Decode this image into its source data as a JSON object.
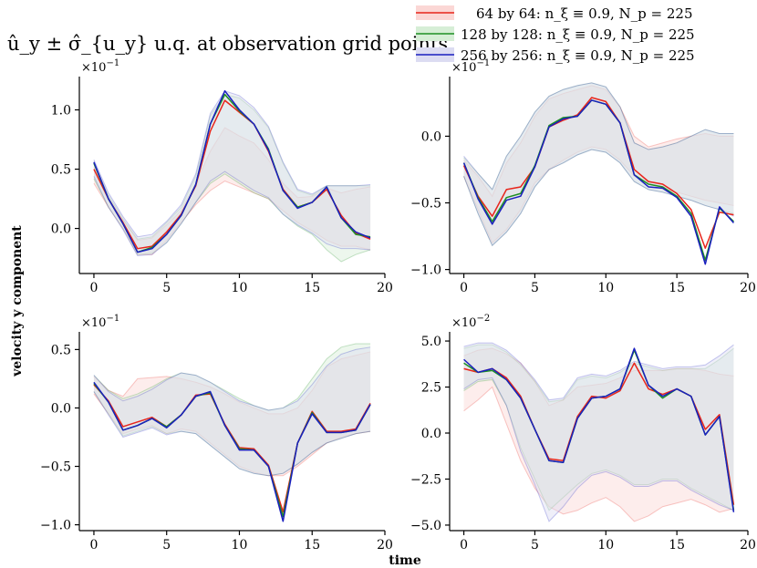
{
  "title": "û_y ± σ̂_{u_y} u.q. at observation grid points",
  "xlabel": "time",
  "ylabel": "velocity y component",
  "legend": [
    {
      "label": "64 by 64: n_ξ ≡ 0.9, N_p = 225",
      "color": "#e8251b",
      "fill": "#fbd7d5"
    },
    {
      "label": "128 by 128: n_ξ ≡ 0.9, N_p = 225",
      "color": "#1e8f24",
      "fill": "#d6eed6"
    },
    {
      "label": "256 by 256: n_ξ ≡ 0.9, N_p = 225",
      "color": "#1a1fbf",
      "fill": "#dcdcf2"
    }
  ],
  "chart_data": [
    {
      "type": "line",
      "panel": "top-left",
      "multiplier": "×10^-1",
      "xlim": [
        -1,
        20
      ],
      "ylim": [
        -0.38,
        1.25
      ],
      "xticks": [
        0,
        5,
        10,
        15,
        20
      ],
      "xtick_labels": [
        "0",
        "5",
        "10",
        "15",
        "20"
      ],
      "yticks": [
        0.0,
        0.5,
        1.0
      ],
      "ytick_labels": [
        "0.0",
        "0.5",
        "1.0"
      ],
      "x": [
        0,
        1,
        2,
        3,
        4,
        5,
        6,
        7,
        8,
        9,
        10,
        11,
        12,
        13,
        14,
        15,
        16,
        17,
        18,
        19
      ],
      "series": [
        {
          "name": "64 by 64",
          "values": [
            0.5,
            0.25,
            0.05,
            -0.17,
            -0.15,
            -0.03,
            0.12,
            0.36,
            0.82,
            1.08,
            0.98,
            0.88,
            0.65,
            0.33,
            0.18,
            0.22,
            0.33,
            0.11,
            -0.04,
            -0.09
          ],
          "upper": [
            0.52,
            0.26,
            0.07,
            -0.1,
            -0.08,
            0.03,
            0.15,
            0.38,
            0.65,
            0.85,
            0.78,
            0.72,
            0.58,
            0.38,
            0.26,
            0.27,
            0.34,
            0.3,
            0.33,
            0.35
          ],
          "lower": [
            0.38,
            0.18,
            0.0,
            -0.22,
            -0.22,
            -0.1,
            0.05,
            0.2,
            0.32,
            0.4,
            0.35,
            0.3,
            0.25,
            0.15,
            0.05,
            -0.02,
            -0.1,
            -0.15,
            -0.15,
            -0.18
          ]
        },
        {
          "name": "128 by 128",
          "values": [
            0.55,
            0.25,
            0.04,
            -0.2,
            -0.16,
            -0.05,
            0.11,
            0.37,
            0.88,
            1.13,
            0.99,
            0.88,
            0.67,
            0.32,
            0.18,
            0.22,
            0.35,
            0.09,
            -0.05,
            -0.07
          ],
          "upper": [
            0.56,
            0.28,
            0.08,
            -0.09,
            -0.07,
            0.05,
            0.18,
            0.44,
            0.95,
            1.13,
            1.1,
            1.0,
            0.85,
            0.55,
            0.32,
            0.28,
            0.36,
            0.36,
            0.36,
            0.36
          ],
          "lower": [
            0.42,
            0.18,
            0.0,
            -0.22,
            -0.21,
            -0.12,
            0.04,
            0.22,
            0.38,
            0.46,
            0.38,
            0.3,
            0.25,
            0.12,
            0.02,
            -0.05,
            -0.18,
            -0.28,
            -0.22,
            -0.18
          ]
        },
        {
          "name": "256 by 256",
          "values": [
            0.56,
            0.25,
            0.04,
            -0.2,
            -0.17,
            -0.05,
            0.11,
            0.37,
            0.88,
            1.16,
            1.0,
            0.88,
            0.66,
            0.32,
            0.17,
            0.22,
            0.35,
            0.09,
            -0.03,
            -0.08
          ],
          "upper": [
            0.58,
            0.3,
            0.1,
            -0.07,
            -0.05,
            0.06,
            0.2,
            0.46,
            0.97,
            1.16,
            1.12,
            1.02,
            0.86,
            0.56,
            0.33,
            0.29,
            0.36,
            0.36,
            0.36,
            0.37
          ],
          "lower": [
            0.44,
            0.18,
            -0.01,
            -0.23,
            -0.22,
            -0.12,
            0.04,
            0.22,
            0.4,
            0.48,
            0.4,
            0.32,
            0.26,
            0.12,
            0.03,
            -0.04,
            -0.13,
            -0.17,
            -0.17,
            -0.18
          ]
        }
      ]
    },
    {
      "type": "line",
      "panel": "top-right",
      "multiplier": "×10^-1",
      "xlim": [
        -1,
        20
      ],
      "ylim": [
        -1.03,
        0.42
      ],
      "xticks": [
        0,
        5,
        10,
        15,
        20
      ],
      "xtick_labels": [
        "0",
        "5",
        "10",
        "15",
        "20"
      ],
      "yticks": [
        -1.0,
        -0.5,
        0.0
      ],
      "ytick_labels": [
        "−1.0",
        "−0.5",
        "0.0"
      ],
      "x": [
        0,
        1,
        2,
        3,
        4,
        5,
        6,
        7,
        8,
        9,
        10,
        11,
        12,
        13,
        14,
        15,
        16,
        17,
        18,
        19
      ],
      "series": [
        {
          "name": "64 by 64",
          "values": [
            -0.22,
            -0.45,
            -0.6,
            -0.4,
            -0.38,
            -0.23,
            0.07,
            0.12,
            0.16,
            0.29,
            0.26,
            0.1,
            -0.25,
            -0.34,
            -0.36,
            -0.43,
            -0.55,
            -0.84,
            -0.57,
            -0.59
          ],
          "upper": [
            -0.18,
            -0.3,
            -0.45,
            -0.2,
            -0.05,
            0.15,
            0.28,
            0.32,
            0.35,
            0.38,
            0.35,
            0.22,
            0.0,
            -0.08,
            -0.05,
            -0.02,
            0.0,
            0.02,
            0.0,
            0.0
          ],
          "lower": [
            -0.3,
            -0.55,
            -0.8,
            -0.7,
            -0.55,
            -0.35,
            -0.25,
            -0.18,
            -0.12,
            -0.08,
            -0.1,
            -0.18,
            -0.3,
            -0.35,
            -0.4,
            -0.42,
            -0.45,
            -0.48,
            -0.5,
            -0.52
          ]
        },
        {
          "name": "128 by 128",
          "values": [
            -0.2,
            -0.46,
            -0.64,
            -0.46,
            -0.43,
            -0.22,
            0.08,
            0.14,
            0.15,
            0.27,
            0.24,
            0.1,
            -0.29,
            -0.36,
            -0.38,
            -0.45,
            -0.58,
            -0.93,
            -0.54,
            -0.64
          ],
          "upper": [
            -0.16,
            -0.28,
            -0.4,
            -0.15,
            0.0,
            0.18,
            0.3,
            0.35,
            0.38,
            0.4,
            0.37,
            0.22,
            -0.05,
            -0.1,
            -0.08,
            -0.05,
            0.0,
            0.05,
            0.02,
            0.02
          ],
          "lower": [
            -0.3,
            -0.58,
            -0.82,
            -0.72,
            -0.58,
            -0.38,
            -0.25,
            -0.2,
            -0.14,
            -0.1,
            -0.12,
            -0.2,
            -0.34,
            -0.4,
            -0.42,
            -0.45,
            -0.48,
            -0.52,
            -0.55,
            -0.58
          ]
        },
        {
          "name": "256 by 256",
          "values": [
            -0.2,
            -0.47,
            -0.66,
            -0.48,
            -0.45,
            -0.23,
            0.07,
            0.13,
            0.15,
            0.27,
            0.24,
            0.1,
            -0.29,
            -0.38,
            -0.39,
            -0.46,
            -0.6,
            -0.96,
            -0.53,
            -0.65
          ],
          "upper": [
            -0.15,
            -0.28,
            -0.4,
            -0.15,
            0.0,
            0.18,
            0.3,
            0.35,
            0.38,
            0.4,
            0.37,
            0.22,
            -0.05,
            -0.1,
            -0.08,
            -0.05,
            0.0,
            0.05,
            0.02,
            0.02
          ],
          "lower": [
            -0.3,
            -0.58,
            -0.82,
            -0.72,
            -0.58,
            -0.38,
            -0.25,
            -0.2,
            -0.14,
            -0.1,
            -0.12,
            -0.2,
            -0.34,
            -0.4,
            -0.42,
            -0.45,
            -0.48,
            -0.52,
            -0.55,
            -0.6
          ]
        }
      ]
    },
    {
      "type": "line",
      "panel": "bottom-left",
      "multiplier": "×10^-1",
      "xlim": [
        -1,
        20
      ],
      "ylim": [
        -1.05,
        0.62
      ],
      "xticks": [
        0,
        5,
        10,
        15,
        20
      ],
      "xtick_labels": [
        "0",
        "5",
        "10",
        "15",
        "20"
      ],
      "yticks": [
        -1.0,
        -0.5,
        0.0,
        0.5
      ],
      "ytick_labels": [
        "−1.0",
        "−0.5",
        "0.0",
        "0.5"
      ],
      "x": [
        0,
        1,
        2,
        3,
        4,
        5,
        6,
        7,
        8,
        9,
        10,
        11,
        12,
        13,
        14,
        15,
        16,
        17,
        18,
        19
      ],
      "series": [
        {
          "name": "64 by 64",
          "values": [
            0.2,
            0.06,
            -0.16,
            -0.12,
            -0.08,
            -0.16,
            -0.06,
            0.11,
            0.12,
            -0.14,
            -0.34,
            -0.35,
            -0.49,
            -0.89,
            -0.3,
            -0.03,
            -0.2,
            -0.2,
            -0.18,
            0.04
          ],
          "upper": [
            0.27,
            0.15,
            0.1,
            0.25,
            0.26,
            0.27,
            0.25,
            0.22,
            0.18,
            0.12,
            0.05,
            0.0,
            -0.05,
            -0.05,
            0.0,
            0.15,
            0.35,
            0.42,
            0.45,
            0.48
          ],
          "lower": [
            0.12,
            -0.05,
            -0.22,
            -0.18,
            -0.15,
            -0.22,
            -0.18,
            -0.2,
            -0.3,
            -0.4,
            -0.5,
            -0.55,
            -0.58,
            -0.58,
            -0.5,
            -0.4,
            -0.3,
            -0.25,
            -0.22,
            -0.2
          ]
        },
        {
          "name": "128 by 128",
          "values": [
            0.21,
            0.05,
            -0.19,
            -0.15,
            -0.09,
            -0.16,
            -0.06,
            0.1,
            0.13,
            -0.15,
            -0.35,
            -0.36,
            -0.5,
            -0.93,
            -0.3,
            -0.04,
            -0.21,
            -0.21,
            -0.19,
            0.03
          ],
          "upper": [
            0.28,
            0.15,
            0.08,
            0.12,
            0.18,
            0.25,
            0.3,
            0.28,
            0.22,
            0.15,
            0.08,
            0.02,
            -0.02,
            0.0,
            0.08,
            0.25,
            0.42,
            0.52,
            0.55,
            0.55
          ],
          "lower": [
            0.14,
            -0.05,
            -0.24,
            -0.2,
            -0.16,
            -0.22,
            -0.2,
            -0.22,
            -0.32,
            -0.42,
            -0.52,
            -0.56,
            -0.58,
            -0.56,
            -0.48,
            -0.38,
            -0.3,
            -0.26,
            -0.22,
            -0.2
          ]
        },
        {
          "name": "256 by 256",
          "values": [
            0.22,
            0.05,
            -0.19,
            -0.15,
            -0.09,
            -0.17,
            -0.06,
            0.1,
            0.14,
            -0.15,
            -0.36,
            -0.36,
            -0.5,
            -0.97,
            -0.3,
            -0.05,
            -0.21,
            -0.21,
            -0.19,
            0.03
          ],
          "upper": [
            0.28,
            0.14,
            0.06,
            0.1,
            0.16,
            0.24,
            0.3,
            0.28,
            0.22,
            0.14,
            0.06,
            0.02,
            -0.02,
            0.0,
            0.06,
            0.2,
            0.36,
            0.46,
            0.5,
            0.52
          ],
          "lower": [
            0.14,
            -0.06,
            -0.25,
            -0.21,
            -0.17,
            -0.23,
            -0.2,
            -0.22,
            -0.32,
            -0.42,
            -0.52,
            -0.56,
            -0.58,
            -0.56,
            -0.48,
            -0.38,
            -0.3,
            -0.26,
            -0.22,
            -0.2
          ]
        }
      ]
    },
    {
      "type": "line",
      "panel": "bottom-right",
      "multiplier": "×10^-2",
      "xlim": [
        -1,
        20
      ],
      "ylim": [
        -5.3,
        5.3
      ],
      "xticks": [
        0,
        5,
        10,
        15,
        20
      ],
      "xtick_labels": [
        "0",
        "5",
        "10",
        "15",
        "20"
      ],
      "yticks": [
        -5.0,
        -2.5,
        0.0,
        2.5,
        5.0
      ],
      "ytick_labels": [
        "−5.0",
        "−2.5",
        "0.0",
        "2.5",
        "5.0"
      ],
      "x": [
        0,
        1,
        2,
        3,
        4,
        5,
        6,
        7,
        8,
        9,
        10,
        11,
        12,
        13,
        14,
        15,
        16,
        17,
        18,
        19
      ],
      "series": [
        {
          "name": "64 by 64",
          "values": [
            3.5,
            3.3,
            3.5,
            3.0,
            2.0,
            0.2,
            -1.4,
            -1.5,
            0.9,
            2.0,
            1.9,
            2.3,
            3.8,
            2.4,
            2.1,
            2.4,
            2.0,
            0.2,
            1.0,
            -3.9
          ],
          "upper": [
            4.2,
            4.5,
            4.6,
            4.3,
            3.8,
            2.8,
            1.5,
            1.8,
            2.5,
            2.6,
            2.7,
            3.0,
            3.4,
            3.4,
            3.4,
            3.5,
            3.5,
            3.4,
            3.2,
            3.1
          ],
          "lower": [
            1.2,
            1.8,
            2.5,
            0.5,
            -1.5,
            -3.0,
            -4.0,
            -4.4,
            -4.2,
            -3.8,
            -3.5,
            -4.0,
            -4.8,
            -4.5,
            -4.0,
            -3.8,
            -3.6,
            -3.9,
            -4.3,
            -4.1
          ]
        },
        {
          "name": "128 by 128",
          "values": [
            3.8,
            3.3,
            3.4,
            2.9,
            1.9,
            0.2,
            -1.5,
            -1.6,
            0.8,
            1.9,
            2.0,
            2.4,
            4.5,
            2.6,
            1.9,
            2.4,
            2.0,
            -0.1,
            0.9,
            -4.2
          ],
          "upper": [
            4.6,
            4.8,
            4.8,
            4.4,
            3.7,
            2.8,
            1.7,
            1.8,
            2.9,
            3.1,
            3.0,
            3.3,
            3.8,
            3.6,
            3.4,
            3.5,
            3.5,
            3.5,
            4.0,
            4.6
          ],
          "lower": [
            2.3,
            2.8,
            2.9,
            1.5,
            -0.8,
            -2.5,
            -4.2,
            -3.5,
            -2.8,
            -2.2,
            -2.0,
            -2.3,
            -2.8,
            -2.8,
            -2.5,
            -2.5,
            -3.0,
            -3.4,
            -3.8,
            -4.2
          ]
        },
        {
          "name": "256 by 256",
          "values": [
            4.0,
            3.3,
            3.5,
            2.9,
            1.9,
            0.2,
            -1.5,
            -1.6,
            0.8,
            1.9,
            2.0,
            2.4,
            4.6,
            2.6,
            2.0,
            2.4,
            2.0,
            -0.1,
            0.9,
            -4.3
          ],
          "upper": [
            4.7,
            4.9,
            4.9,
            4.5,
            3.8,
            2.9,
            1.8,
            1.9,
            3.0,
            3.2,
            3.1,
            3.4,
            3.9,
            3.7,
            3.5,
            3.6,
            3.6,
            3.7,
            4.2,
            4.8
          ],
          "lower": [
            2.4,
            2.9,
            3.0,
            1.5,
            -1.0,
            -2.8,
            -4.8,
            -4.0,
            -3.0,
            -2.3,
            -2.1,
            -2.4,
            -2.9,
            -2.9,
            -2.6,
            -2.6,
            -3.1,
            -3.5,
            -3.9,
            -4.2
          ]
        }
      ]
    }
  ]
}
